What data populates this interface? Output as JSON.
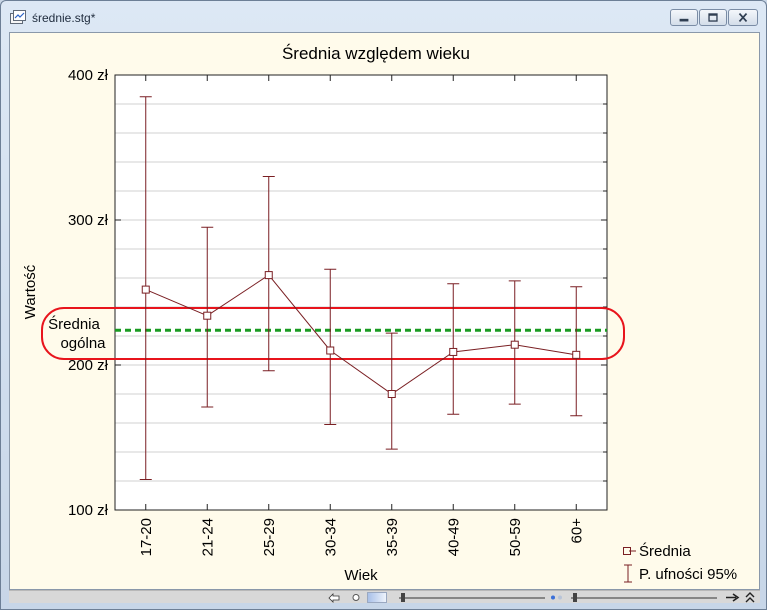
{
  "window": {
    "title": "średnie.stg*"
  },
  "annotation": {
    "line1": "Średnia",
    "line2": "ogólna",
    "value": 224
  },
  "colors": {
    "series": "#7a1f23",
    "overall": "#1a9b22",
    "highlight": "#e8141c"
  },
  "chart_data": {
    "type": "line",
    "title": "Średnia względem wieku",
    "xlabel": "Wiek",
    "ylabel": "Wartość",
    "categories": [
      "17-20",
      "21-24",
      "25-29",
      "30-34",
      "35-39",
      "40-49",
      "50-59",
      "60+"
    ],
    "series": [
      {
        "name": "Średnia",
        "values": [
          252,
          234,
          262,
          210,
          180,
          209,
          214,
          207
        ],
        "ci_low": [
          121,
          171,
          196,
          159,
          142,
          166,
          173,
          165
        ],
        "ci_high": [
          385,
          295,
          330,
          266,
          222,
          256,
          258,
          254
        ]
      }
    ],
    "error_bar_label": "P. ufności 95%",
    "ylim": [
      100,
      400
    ],
    "yticks": [
      100,
      200,
      300,
      400
    ],
    "ytick_labels": [
      "100 zł",
      "200 zł",
      "300 zł",
      "400 zł"
    ],
    "grid": true,
    "legend": "bottom-right"
  }
}
